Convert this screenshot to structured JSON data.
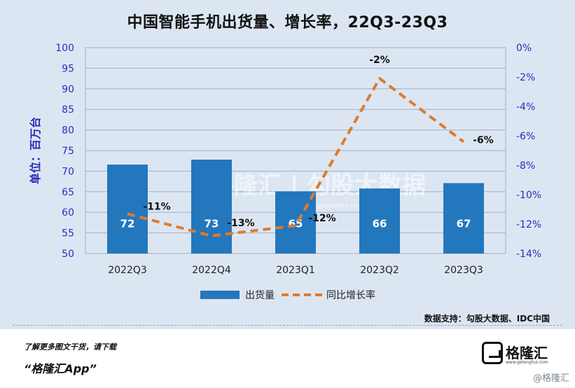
{
  "page": {
    "title": "中国智能手机出货量、增长率，22Q3-23Q3",
    "source": "数据支持：勾股大数据、IDC中国",
    "footer_note": "了解更多图文干货，请下载",
    "footer_app": "“格隆汇App”",
    "logo_name": "格隆汇",
    "logo_url": "www.gelonghui.com",
    "watermark": "@格隆汇"
  },
  "chart_data": {
    "type": "bar",
    "categories": [
      "2022Q3",
      "2022Q4",
      "2023Q1",
      "2023Q2",
      "2023Q3"
    ],
    "series": [
      {
        "name": "出货量",
        "type": "bar",
        "axis": "left",
        "values": [
          71.6,
          72.8,
          65.1,
          65.8,
          67.1
        ],
        "labels": [
          "72",
          "73",
          "65",
          "66",
          "67"
        ],
        "color": "#2377bd"
      },
      {
        "name": "同比增长率",
        "type": "line",
        "style": "dashed",
        "axis": "right",
        "values": [
          -11.3,
          -12.8,
          -12.1,
          -2.1,
          -6.4
        ],
        "labels": [
          "-11%",
          "-13%",
          "-12%",
          "-2%",
          "-6%"
        ],
        "color": "#e07b2a"
      }
    ],
    "ylabel": "单位：百万台",
    "ylim": [
      50,
      100
    ],
    "yticks": [
      "50",
      "55",
      "60",
      "65",
      "70",
      "75",
      "80",
      "85",
      "90",
      "95",
      "100"
    ],
    "y2lim": [
      -14,
      0
    ],
    "y2ticks": [
      "-14%",
      "-12%",
      "-10%",
      "-8%",
      "-6%",
      "-4%",
      "-2%",
      "0%"
    ],
    "grid": true,
    "legend_position": "bottom",
    "axis_color": "#2b2fb8",
    "watermark_text": "格隆汇 | 勾股大数据",
    "watermark_url": "www.gogudata.com"
  }
}
